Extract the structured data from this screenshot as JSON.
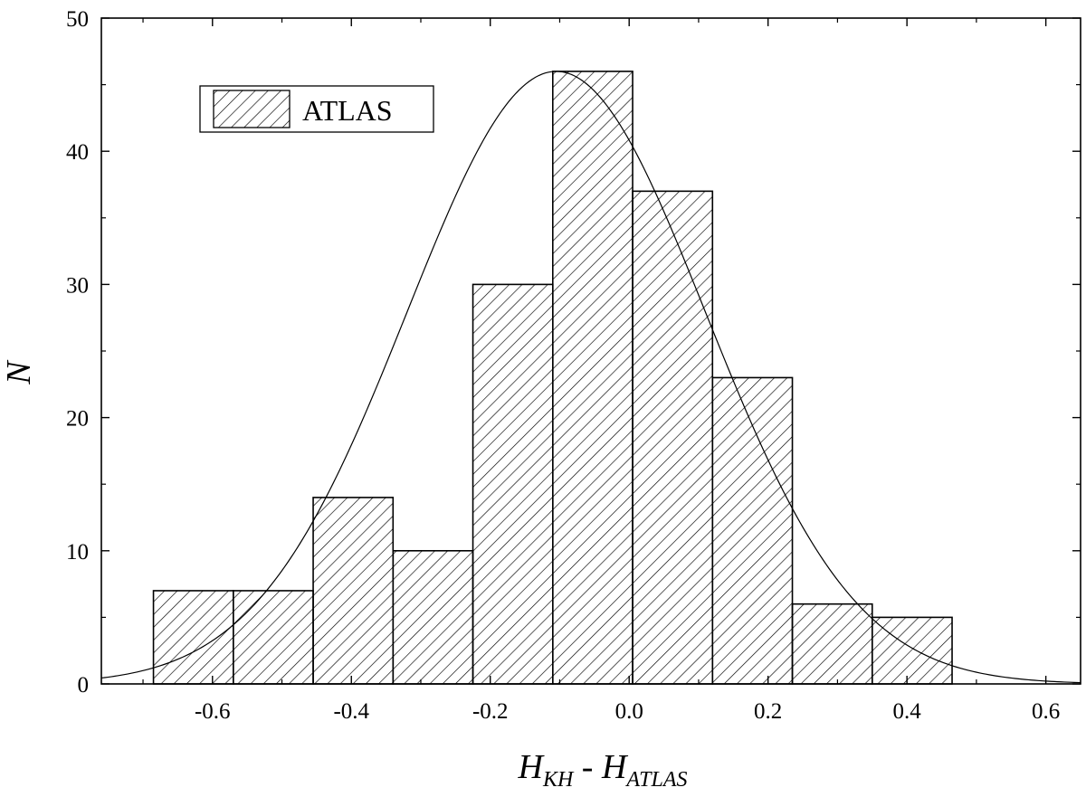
{
  "chart_data": {
    "type": "bar",
    "subtype": "histogram",
    "bin_edges": [
      -0.685,
      -0.57,
      -0.455,
      -0.34,
      -0.225,
      -0.11,
      0.005,
      0.12,
      0.235,
      0.35,
      0.465
    ],
    "counts": [
      7,
      7,
      14,
      10,
      30,
      46,
      37,
      23,
      6,
      5
    ],
    "series": [
      {
        "name": "ATLAS",
        "fill": "diagonal-hatch"
      }
    ],
    "fit_curve": {
      "type": "gaussian",
      "mean": -0.105,
      "sigma": 0.215,
      "peak": 46
    },
    "x_label": {
      "main": "H",
      "sub1": "KH",
      "dash": " - ",
      "main2": "H",
      "sub2": "ATLAS"
    },
    "y_label": "N",
    "xlim": [
      -0.76,
      0.65
    ],
    "ylim": [
      0,
      50
    ],
    "xticks": [
      -0.6,
      -0.4,
      -0.2,
      0.0,
      0.2,
      0.4,
      0.6
    ],
    "xtick_labels": [
      "-0.6",
      "-0.4",
      "-0.2",
      "0.0",
      "0.2",
      "0.4",
      "0.6"
    ],
    "yticks": [
      0,
      10,
      20,
      30,
      40,
      50
    ],
    "ytick_labels": [
      "0",
      "10",
      "20",
      "30",
      "40",
      "50"
    ],
    "legend_position": "top-left",
    "grid": false,
    "colors": {
      "stroke": "#000000",
      "background": "#ffffff"
    }
  }
}
